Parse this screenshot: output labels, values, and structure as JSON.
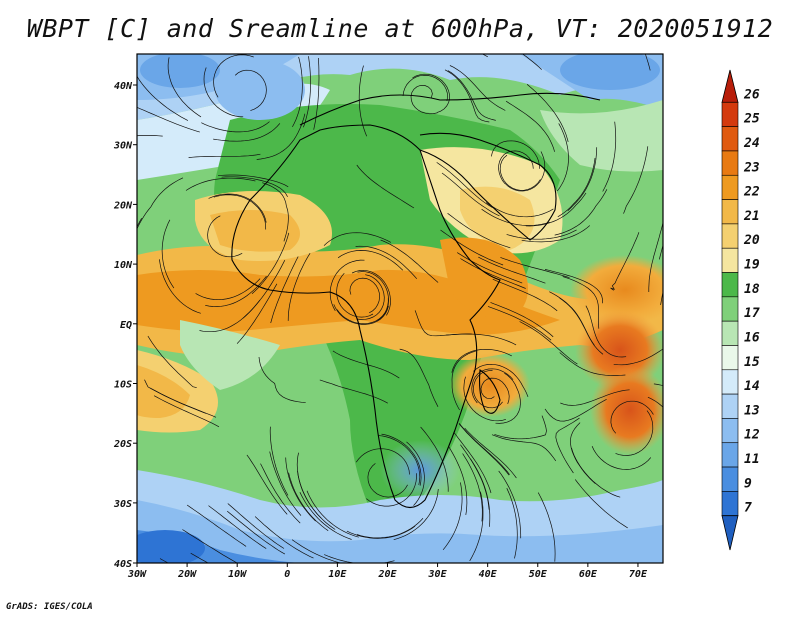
{
  "title": "WBPT [C] and Sreamline at 600hPa, VT: 2020051912",
  "credit": "GrADS: IGES/COLA",
  "map": {
    "lon_ticks": [
      "30W",
      "20W",
      "10W",
      "0",
      "10E",
      "20E",
      "30E",
      "40E",
      "50E",
      "60E",
      "70E"
    ],
    "lat_ticks": [
      "40N",
      "30N",
      "20N",
      "10N",
      "EQ",
      "10S",
      "20S",
      "30S",
      "40S"
    ]
  },
  "colorbar": {
    "labels": [
      "7",
      "9",
      "11",
      "12",
      "13",
      "14",
      "15",
      "16",
      "17",
      "18",
      "19",
      "20",
      "21",
      "22",
      "23",
      "24",
      "25",
      "26"
    ],
    "colors": [
      "#1f5fc0",
      "#2e74d4",
      "#4a8ee0",
      "#6aa6e8",
      "#8cbdf0",
      "#aed2f5",
      "#d4ebfa",
      "#eaf8ea",
      "#b8e6b4",
      "#7fd07a",
      "#4cb84a",
      "#f5e6a0",
      "#f4d070",
      "#f2b848",
      "#ee9a20",
      "#e87a12",
      "#e05a10",
      "#d43a0e",
      "#b81e0a"
    ]
  }
}
